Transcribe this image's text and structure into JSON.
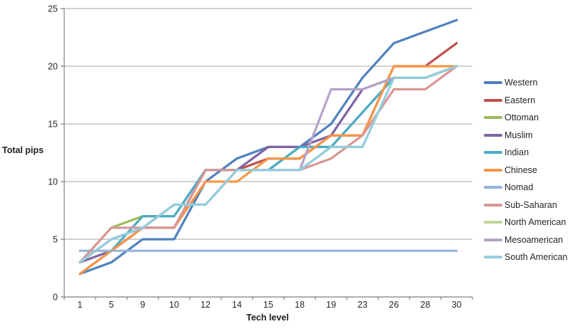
{
  "chart_data": {
    "type": "line",
    "title": "",
    "xlabel": "Tech level",
    "ylabel": "Total pips",
    "x_categories": [
      "1",
      "5",
      "9",
      "10",
      "12",
      "14",
      "15",
      "18",
      "19",
      "23",
      "26",
      "28",
      "30"
    ],
    "y_ticks": [
      0,
      5,
      10,
      15,
      20,
      25
    ],
    "ylim": [
      0,
      25
    ],
    "grid": true,
    "legend_position": "right",
    "series": [
      {
        "name": "Western",
        "color": "#4F81BD",
        "values": [
          2,
          3,
          5,
          5,
          10,
          12,
          13,
          13,
          15,
          19,
          22,
          23,
          24
        ]
      },
      {
        "name": "Eastern",
        "color": "#C0504D",
        "values": [
          2,
          4,
          6,
          6,
          11,
          11,
          12,
          12,
          14,
          14,
          20,
          20,
          22
        ]
      },
      {
        "name": "Ottoman",
        "color": "#9BBB59",
        "values": [
          3,
          6,
          7,
          7,
          11,
          11,
          11,
          13,
          13,
          16,
          19,
          19,
          20
        ]
      },
      {
        "name": "Muslim",
        "color": "#8064A2",
        "values": [
          3,
          4,
          6,
          6,
          11,
          11,
          13,
          13,
          14,
          18,
          19,
          19,
          20
        ]
      },
      {
        "name": "Indian",
        "color": "#4BACC6",
        "values": [
          2,
          4,
          7,
          7,
          11,
          11,
          11,
          13,
          13,
          16,
          19,
          19,
          20
        ]
      },
      {
        "name": "Chinese",
        "color": "#F79646",
        "values": [
          2,
          4,
          6,
          6,
          10,
          10,
          12,
          12,
          14,
          14,
          20,
          20,
          20
        ]
      },
      {
        "name": "Nomad",
        "color": "#95B3D7",
        "values": [
          4,
          4,
          4,
          4,
          4,
          4,
          4,
          4,
          4,
          4,
          4,
          4,
          4
        ]
      },
      {
        "name": "Sub-Saharan",
        "color": "#D99694",
        "values": [
          3,
          6,
          6,
          6,
          11,
          11,
          11,
          11,
          12,
          14,
          18,
          18,
          20
        ]
      },
      {
        "name": "North American",
        "color": "#C3D69B",
        "values": [
          3,
          5,
          6,
          8,
          8,
          11,
          11,
          11,
          13,
          13,
          19,
          19,
          20
        ]
      },
      {
        "name": "Mesoamerican",
        "color": "#B3A2C7",
        "values": [
          3,
          5,
          6,
          8,
          8,
          11,
          11,
          11,
          18,
          18,
          19,
          19,
          20
        ]
      },
      {
        "name": "South American",
        "color": "#93CDDD",
        "values": [
          3,
          5,
          6,
          8,
          8,
          11,
          11,
          11,
          13,
          13,
          19,
          19,
          20
        ]
      }
    ]
  },
  "style_colors": {
    "gridline": "#A6A6A6",
    "axis": "#808080",
    "tick_text": "#262626"
  }
}
